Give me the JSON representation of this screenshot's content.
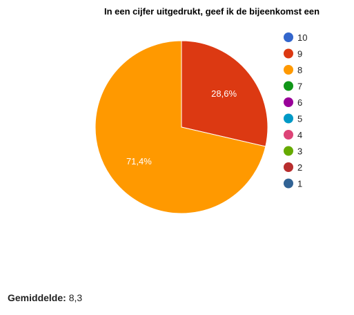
{
  "chart_data": {
    "type": "pie",
    "title": "In een cijfer uitgedrukt, geef ik de bijeenkomst een",
    "legend_position": "right",
    "slices": [
      {
        "label": "10",
        "value": 0,
        "color": "#3366cc"
      },
      {
        "label": "9",
        "value": 28.6,
        "display": "28,6%",
        "color": "#dc3912"
      },
      {
        "label": "8",
        "value": 71.4,
        "display": "71,4%",
        "color": "#ff9900"
      },
      {
        "label": "7",
        "value": 0,
        "color": "#109618"
      },
      {
        "label": "6",
        "value": 0,
        "color": "#990099"
      },
      {
        "label": "5",
        "value": 0,
        "color": "#0099c6"
      },
      {
        "label": "4",
        "value": 0,
        "color": "#dd4477"
      },
      {
        "label": "3",
        "value": 0,
        "color": "#66aa00"
      },
      {
        "label": "2",
        "value": 0,
        "color": "#b82e2e"
      },
      {
        "label": "1",
        "value": 0,
        "color": "#316395"
      }
    ]
  },
  "summary": {
    "label": "Gemiddelde:",
    "value": "8,3"
  }
}
